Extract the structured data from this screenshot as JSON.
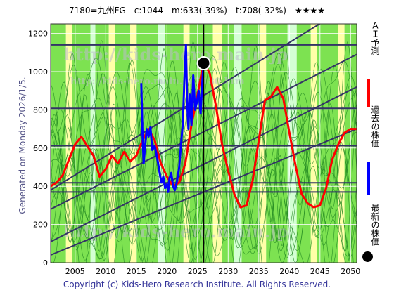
{
  "header": {
    "title": "7180=九州FG　c:1044　m:633(-39%)　t:708(-32%)　★★★★"
  },
  "side_note": "Generated on Monday 2026/1/5.",
  "footer": {
    "copyright": "Copyright (c) Kids-Hero Research Institute. All Rights Reserved."
  },
  "watermarks": [
    "http://kids-hero.main.jp",
    "http://kids-hero.main.jp/7180.htm",
    "http://kids-hero.main.jp"
  ],
  "legend": [
    {
      "label": "ＡＩ予測",
      "color": "#ff0000"
    },
    {
      "label": "過去の株価",
      "color": "#0000ff"
    },
    {
      "label": "最新の株価",
      "color": "#000000"
    }
  ],
  "colors": {
    "band_green": "#66dd33",
    "band_yellow": "#ffff99",
    "band_light": "#ccffcc",
    "grid": "#333366"
  },
  "chart_data": {
    "type": "line",
    "xlim": [
      2001,
      2051
    ],
    "ylim": [
      0,
      1250
    ],
    "x_ticks": [
      2005,
      2010,
      2015,
      2020,
      2025,
      2030,
      2035,
      2040,
      2045,
      2050
    ],
    "y_ticks": [
      0,
      200,
      400,
      600,
      800,
      1000,
      1200
    ],
    "horizontal_levels": [
      1140,
      808,
      612,
      418,
      370
    ],
    "latest_point": {
      "x": 2026.0,
      "y": 1044
    },
    "marker_year": 2026.0,
    "trend_lines": [
      {
        "x1": 2001,
        "y1": 380,
        "x2": 2051,
        "y2": 1370
      },
      {
        "x1": 2001,
        "y1": 280,
        "x2": 2051,
        "y2": 1090
      },
      {
        "x1": 2001,
        "y1": 110,
        "x2": 2051,
        "y2": 920
      },
      {
        "x1": 2001,
        "y1": 40,
        "x2": 2051,
        "y2": 700
      }
    ],
    "series": [
      {
        "name": "ＡＩ予測",
        "color": "#ff0000",
        "x": [
          2001,
          2002,
          2003,
          2004,
          2005,
          2006,
          2007,
          2008,
          2009,
          2010,
          2011,
          2012,
          2013,
          2014,
          2015,
          2016,
          2017,
          2018,
          2019,
          2020,
          2021,
          2022,
          2023,
          2024,
          2025,
          2026,
          2027,
          2028,
          2029,
          2030,
          2031,
          2032,
          2033,
          2034,
          2035,
          2036,
          2037,
          2038,
          2039,
          2040,
          2041,
          2042,
          2043,
          2044,
          2045,
          2046,
          2047,
          2048,
          2049,
          2050,
          2051
        ],
        "y": [
          400,
          420,
          460,
          540,
          620,
          660,
          610,
          560,
          450,
          490,
          560,
          520,
          580,
          530,
          560,
          640,
          700,
          640,
          520,
          450,
          400,
          420,
          520,
          720,
          880,
          1050,
          990,
          820,
          620,
          480,
          360,
          290,
          300,
          430,
          640,
          850,
          870,
          920,
          860,
          680,
          510,
          360,
          310,
          290,
          300,
          390,
          540,
          620,
          680,
          700,
          700
        ]
      },
      {
        "name": "過去の株価",
        "color": "#0000ff",
        "x": [
          2015.8,
          2016.0,
          2016.2,
          2016.4,
          2016.7,
          2017.0,
          2017.3,
          2017.6,
          2018.0,
          2018.4,
          2018.8,
          2019.1,
          2019.4,
          2019.7,
          2020.0,
          2020.2,
          2020.4,
          2020.7,
          2021.0,
          2021.3,
          2021.6,
          2022.0,
          2022.3,
          2022.6,
          2022.9,
          2023.1,
          2023.3,
          2023.5,
          2023.7,
          2024.0,
          2024.3,
          2024.6,
          2024.9,
          2025.2,
          2025.5,
          2025.8,
          2026.0
        ],
        "y": [
          940,
          680,
          520,
          600,
          700,
          660,
          710,
          590,
          610,
          550,
          470,
          420,
          450,
          390,
          410,
          370,
          440,
          470,
          400,
          380,
          420,
          500,
          620,
          730,
          1000,
          1140,
          840,
          700,
          880,
          720,
          980,
          800,
          840,
          900,
          780,
          960,
          1044
        ]
      }
    ]
  }
}
